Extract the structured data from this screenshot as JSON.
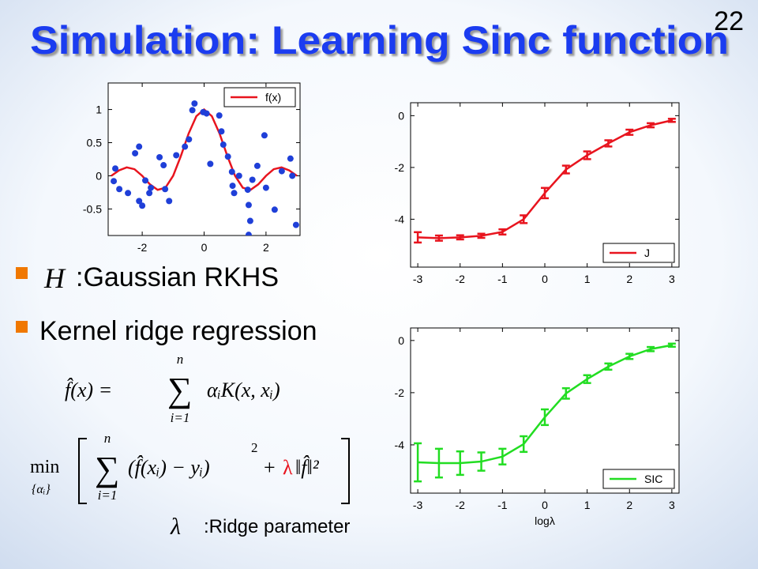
{
  "slide": {
    "title": "Simulation: Learning Sinc function",
    "page_number": "22",
    "bullets": [
      {
        "symbol": "H",
        "text": ":Gaussian RKHS"
      },
      {
        "text": "Kernel ridge regression"
      }
    ],
    "formula1": {
      "lhs": "f̂(x) =",
      "sum": "∑",
      "upper": "n",
      "lower": "i=1",
      "rhs": "αᵢK(x, xᵢ)"
    },
    "formula2": {
      "min": "min",
      "min_sub": "{αᵢ}",
      "sum": "∑",
      "upper": "n",
      "lower": "i=1",
      "term": "(f̂(xᵢ) − yᵢ)",
      "power": "2",
      "plus": "+",
      "lambda": "λ",
      "norm": "‖f̂‖²"
    },
    "note": {
      "symbol": "λ",
      "text": ":Ridge parameter"
    }
  },
  "chart_data": [
    {
      "type": "scatter",
      "xlim": [
        -3.1,
        3.1
      ],
      "ylim": [
        -0.9,
        1.4
      ],
      "xticks": [
        -2,
        0,
        2
      ],
      "yticks": [
        -0.5,
        0,
        0.5,
        1
      ],
      "legend": "upper right",
      "series": [
        {
          "name": "f(x)",
          "color": "#e8141e",
          "x": [
            -3,
            -2.75,
            -2.5,
            -2.25,
            -2,
            -1.75,
            -1.5,
            -1.25,
            -1,
            -0.75,
            -0.5,
            -0.25,
            0,
            0.25,
            0.5,
            0.75,
            1,
            1.25,
            1.5,
            1.75,
            2,
            2.25,
            2.5,
            2.75,
            3
          ],
          "values": [
            0,
            0.082,
            0.127,
            0.1,
            0,
            -0.129,
            -0.212,
            -0.18,
            0,
            0.3,
            0.637,
            0.9,
            1,
            0.9,
            0.637,
            0.3,
            0,
            -0.18,
            -0.212,
            -0.129,
            0,
            0.1,
            0.127,
            0.082,
            0
          ]
        }
      ],
      "points": {
        "color": "#1f3fd8",
        "x": [
          -2.87,
          -2.92,
          -2.74,
          -2.46,
          -2.23,
          -2.1,
          -2.1,
          -2.0,
          -1.9,
          -1.77,
          -1.72,
          -1.44,
          -1.31,
          -1.26,
          -1.13,
          -0.9,
          -0.62,
          -0.49,
          -0.38,
          -0.31,
          -0.03,
          0.08,
          0.2,
          0.49,
          0.56,
          0.62,
          0.77,
          0.9,
          0.92,
          0.97,
          1.13,
          1.41,
          1.44,
          1.49,
          1.44,
          1.56,
          1.72,
          1.95,
          2.0,
          2.28,
          2.51,
          2.79,
          2.85,
          2.97
        ],
        "values": [
          0.11,
          -0.08,
          -0.2,
          -0.26,
          0.34,
          0.44,
          -0.38,
          -0.45,
          -0.07,
          -0.26,
          -0.18,
          0.28,
          0.16,
          -0.2,
          -0.38,
          0.31,
          0.44,
          0.55,
          0.99,
          1.09,
          0.96,
          0.94,
          0.18,
          0.91,
          0.67,
          0.47,
          0.29,
          0.06,
          -0.15,
          -0.26,
          0.0,
          -0.21,
          -0.44,
          -0.68,
          -0.89,
          -0.06,
          0.15,
          0.61,
          -0.18,
          -0.51,
          0.07,
          0.26,
          0.0,
          -0.74
        ]
      }
    },
    {
      "type": "line",
      "xlim": [
        -3.17,
        3.17
      ],
      "ylim": [
        -5.85,
        0.5
      ],
      "xticks": [
        -3,
        -2,
        -1,
        0,
        1,
        2,
        3
      ],
      "yticks": [
        -4,
        -2,
        0
      ],
      "legend": "lower right",
      "x": [
        -3,
        -2.5,
        -2,
        -1.5,
        -1,
        -0.5,
        0,
        0.5,
        1,
        1.5,
        2,
        2.5,
        3
      ],
      "series": [
        {
          "name": "J",
          "color": "#e8141e",
          "values": [
            -4.7,
            -4.73,
            -4.7,
            -4.64,
            -4.49,
            -4.0,
            -2.99,
            -2.08,
            -1.53,
            -1.07,
            -0.64,
            -0.37,
            -0.18
          ],
          "errors": [
            0.2,
            0.1,
            0.08,
            0.08,
            0.1,
            0.15,
            0.2,
            0.15,
            0.15,
            0.12,
            0.1,
            0.08,
            0.06
          ]
        }
      ]
    },
    {
      "type": "line",
      "xlabel": "logλ",
      "xlim": [
        -3.17,
        3.17
      ],
      "ylim": [
        -5.85,
        0.48
      ],
      "xticks": [
        -3,
        -2,
        -1,
        0,
        1,
        2,
        3
      ],
      "yticks": [
        -4,
        -2,
        0
      ],
      "legend": "lower right",
      "x": [
        -3,
        -2.5,
        -2,
        -1.5,
        -1,
        -0.5,
        0,
        0.5,
        1,
        1.5,
        2,
        2.5,
        3
      ],
      "series": [
        {
          "name": "SIC",
          "color": "#22dd22",
          "values": [
            -4.67,
            -4.7,
            -4.7,
            -4.64,
            -4.45,
            -3.97,
            -2.94,
            -2.03,
            -1.48,
            -1.0,
            -0.61,
            -0.33,
            -0.18
          ],
          "errors": [
            0.73,
            0.55,
            0.45,
            0.35,
            0.3,
            0.3,
            0.3,
            0.2,
            0.15,
            0.12,
            0.1,
            0.08,
            0.06
          ]
        }
      ]
    }
  ]
}
